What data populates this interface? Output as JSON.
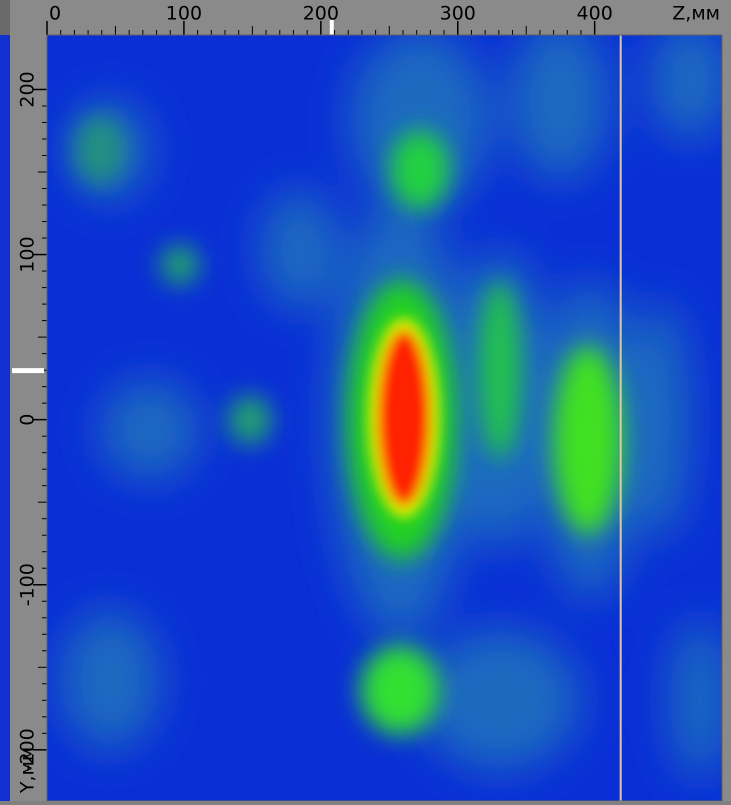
{
  "chart_data": {
    "type": "heatmap",
    "x_label": "Z,мм",
    "y_label": "Y,мм",
    "xlim": [
      0,
      493
    ],
    "xticks": [
      0,
      100,
      200,
      300,
      400
    ],
    "ylim": [
      -231,
      233
    ],
    "yticks": [
      -200,
      -100,
      0,
      100,
      200
    ],
    "cursor_z": 419,
    "marker_z": 208,
    "marker_y": 30
  }
}
